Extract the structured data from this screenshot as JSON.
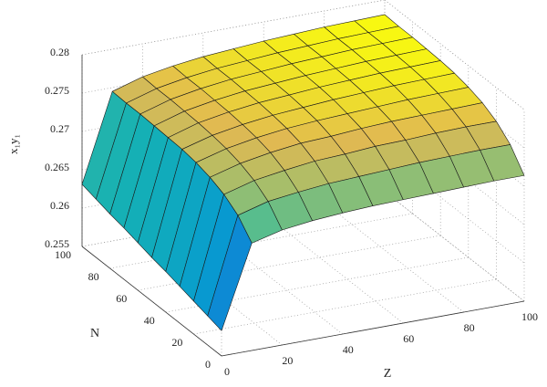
{
  "chart_data": {
    "type": "surface",
    "xlabel": "Z",
    "ylabel": "N",
    "zlabel": "x₁y₁",
    "x": [
      0,
      10,
      20,
      30,
      40,
      50,
      60,
      70,
      80,
      90,
      100
    ],
    "y": [
      0,
      10,
      20,
      30,
      40,
      50,
      60,
      70,
      80,
      90,
      100
    ],
    "z": [
      [
        0.2583,
        0.269,
        0.27,
        0.2705,
        0.2708,
        0.271,
        0.2711,
        0.2712,
        0.2713,
        0.2714,
        0.2714
      ],
      [
        0.2588,
        0.2712,
        0.2723,
        0.2728,
        0.2732,
        0.2734,
        0.2736,
        0.2738,
        0.2739,
        0.274,
        0.274
      ],
      [
        0.2593,
        0.2725,
        0.2736,
        0.2742,
        0.2747,
        0.2749,
        0.2752,
        0.2753,
        0.2755,
        0.2756,
        0.2756
      ],
      [
        0.2598,
        0.2733,
        0.2744,
        0.2751,
        0.2756,
        0.2758,
        0.2761,
        0.2763,
        0.2764,
        0.2765,
        0.2766
      ],
      [
        0.2603,
        0.2738,
        0.2749,
        0.2756,
        0.2761,
        0.2764,
        0.2766,
        0.2768,
        0.277,
        0.2771,
        0.2772
      ],
      [
        0.2607,
        0.2741,
        0.2752,
        0.2759,
        0.2764,
        0.2767,
        0.277,
        0.2772,
        0.2774,
        0.2775,
        0.2776
      ],
      [
        0.2612,
        0.2742,
        0.2754,
        0.2761,
        0.2766,
        0.2769,
        0.2772,
        0.2774,
        0.2776,
        0.2777,
        0.2778
      ],
      [
        0.2617,
        0.2743,
        0.2755,
        0.2762,
        0.2767,
        0.277,
        0.2773,
        0.2775,
        0.2777,
        0.2778,
        0.2779
      ],
      [
        0.2621,
        0.2744,
        0.2756,
        0.2763,
        0.2768,
        0.2771,
        0.2774,
        0.2776,
        0.2778,
        0.2779,
        0.278
      ],
      [
        0.2626,
        0.2744,
        0.2756,
        0.2763,
        0.2768,
        0.2771,
        0.2774,
        0.2776,
        0.2778,
        0.2779,
        0.278
      ],
      [
        0.2631,
        0.2745,
        0.2757,
        0.2764,
        0.2769,
        0.2772,
        0.2775,
        0.2777,
        0.2779,
        0.278,
        0.2781
      ]
    ],
    "xlim": [
      0,
      100
    ],
    "xticks": [
      0,
      20,
      40,
      60,
      80,
      100
    ],
    "ylim": [
      0,
      100
    ],
    "yticks": [
      0,
      20,
      40,
      60,
      80,
      100
    ],
    "zlim": [
      0.255,
      0.28
    ],
    "zticks": [
      0.255,
      0.26,
      0.265,
      0.27,
      0.275,
      0.28
    ],
    "grid": true,
    "colormap": "parula"
  }
}
